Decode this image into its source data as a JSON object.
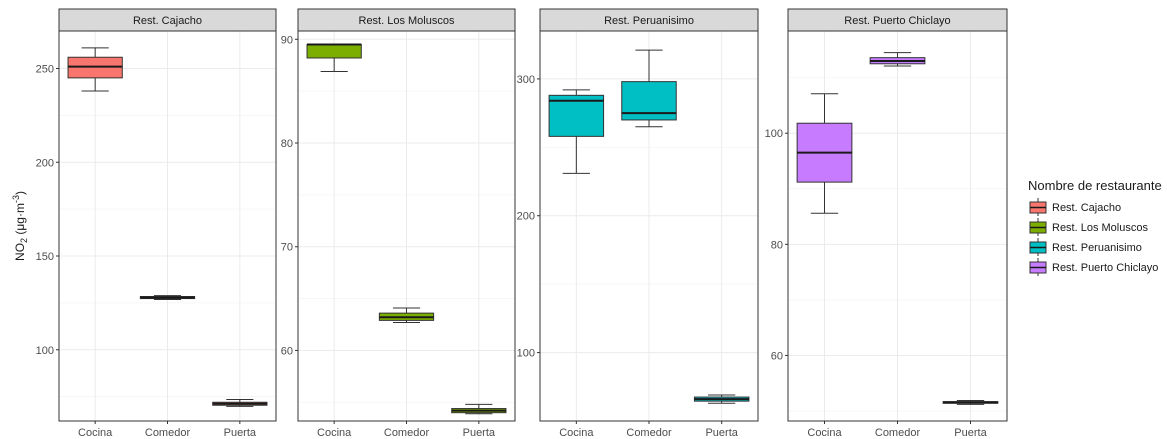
{
  "chart_data": {
    "type": "boxplot",
    "ylabel": {
      "main": "NO",
      "sub": "2",
      "unit_open": "(μg·m",
      "sup": "-3",
      "unit_close": ")"
    },
    "categories": [
      "Cocina",
      "Comedor",
      "Puerta"
    ],
    "legend": {
      "title": "Nombre de restaurante",
      "placement": "right",
      "items": [
        {
          "label": "Rest. Cajacho",
          "color": "#F8766D"
        },
        {
          "label": "Rest. Los Moluscos",
          "color": "#7CAE00"
        },
        {
          "label": "Rest. Peruanisimo",
          "color": "#00BFC4"
        },
        {
          "label": "Rest. Puerto Chiclayo",
          "color": "#C77CFF"
        }
      ]
    },
    "panels": [
      {
        "title": "Rest. Cajacho",
        "color": "#F8766D",
        "ylim": [
          62,
          270
        ],
        "yticks": [
          100,
          150,
          200,
          250
        ],
        "boxes": [
          {
            "category": "Cocina",
            "min": 238,
            "q1": 245,
            "median": 251,
            "q3": 256,
            "max": 261
          },
          {
            "category": "Comedor",
            "min": 126.8,
            "q1": 127.3,
            "median": 127.8,
            "q3": 128.4,
            "max": 128.9
          },
          {
            "category": "Puerta",
            "min": 69.8,
            "q1": 70.4,
            "median": 71.2,
            "q3": 72.0,
            "max": 73.5
          }
        ]
      },
      {
        "title": "Rest. Los Moluscos",
        "color": "#7CAE00",
        "ylim": [
          53.2,
          90.8
        ],
        "yticks": [
          60,
          70,
          80,
          90
        ],
        "boxes": [
          {
            "category": "Cocina",
            "min": 86.9,
            "q1": 88.2,
            "median": 89.5,
            "q3": 89.5,
            "max": 89.5
          },
          {
            "category": "Comedor",
            "min": 62.7,
            "q1": 62.9,
            "median": 63.2,
            "q3": 63.6,
            "max": 64.1
          },
          {
            "category": "Puerta",
            "min": 53.9,
            "q1": 54.0,
            "median": 54.2,
            "q3": 54.4,
            "max": 54.8
          }
        ]
      },
      {
        "title": "Rest. Peruanisimo",
        "color": "#00BFC4",
        "ylim": [
          50,
          335
        ],
        "yticks": [
          100,
          200,
          300
        ],
        "boxes": [
          {
            "category": "Cocina",
            "min": 231,
            "q1": 258,
            "median": 284,
            "q3": 288,
            "max": 292
          },
          {
            "category": "Comedor",
            "min": 265,
            "q1": 270,
            "median": 275,
            "q3": 298,
            "max": 321
          },
          {
            "category": "Puerta",
            "min": 63,
            "q1": 64.5,
            "median": 66,
            "q3": 67.5,
            "max": 69
          }
        ]
      },
      {
        "title": "Rest. Puerto Chiclayo",
        "color": "#C77CFF",
        "ylim": [
          48.2,
          118.4
        ],
        "yticks": [
          60,
          80,
          100
        ],
        "boxes": [
          {
            "category": "Cocina",
            "min": 85.6,
            "q1": 91.2,
            "median": 96.5,
            "q3": 101.8,
            "max": 107.1
          },
          {
            "category": "Comedor",
            "min": 112.1,
            "q1": 112.5,
            "median": 113.0,
            "q3": 113.6,
            "max": 114.5
          },
          {
            "category": "Puerta",
            "min": 51.2,
            "q1": 51.4,
            "median": 51.5,
            "q3": 51.7,
            "max": 51.9
          }
        ]
      }
    ]
  }
}
